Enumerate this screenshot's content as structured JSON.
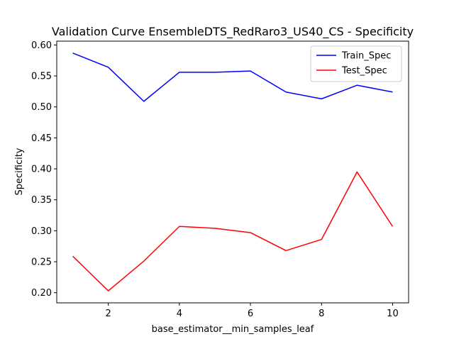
{
  "chart_data": {
    "type": "line",
    "title": "Validation Curve EnsembleDTS_RedRaro3_US40_CS - Specificity",
    "xlabel": "base_estimator__min_samples_leaf",
    "ylabel": "Specificity",
    "x": [
      1,
      2,
      3,
      4,
      5,
      6,
      7,
      8,
      9,
      10
    ],
    "series": [
      {
        "name": "Train_Spec",
        "color": "#0000ff",
        "values": [
          0.587,
          0.564,
          0.509,
          0.556,
          0.556,
          0.558,
          0.524,
          0.513,
          0.535,
          0.524
        ]
      },
      {
        "name": "Test_Spec",
        "color": "#ff0000",
        "values": [
          0.259,
          0.203,
          0.251,
          0.307,
          0.304,
          0.297,
          0.268,
          0.286,
          0.395,
          0.307
        ]
      }
    ],
    "xlim": [
      0.55,
      10.45
    ],
    "ylim": [
      0.1836,
      0.6062
    ],
    "xticks": [
      2,
      4,
      6,
      8,
      10
    ],
    "xtick_labels": [
      "2",
      "4",
      "6",
      "8",
      "10"
    ],
    "yticks": [
      0.2,
      0.25,
      0.3,
      0.35,
      0.4,
      0.45,
      0.5,
      0.55,
      0.6
    ],
    "ytick_labels": [
      "0.20",
      "0.25",
      "0.30",
      "0.35",
      "0.40",
      "0.45",
      "0.50",
      "0.55",
      "0.60"
    ],
    "grid": false,
    "legend_position": "top-right"
  }
}
